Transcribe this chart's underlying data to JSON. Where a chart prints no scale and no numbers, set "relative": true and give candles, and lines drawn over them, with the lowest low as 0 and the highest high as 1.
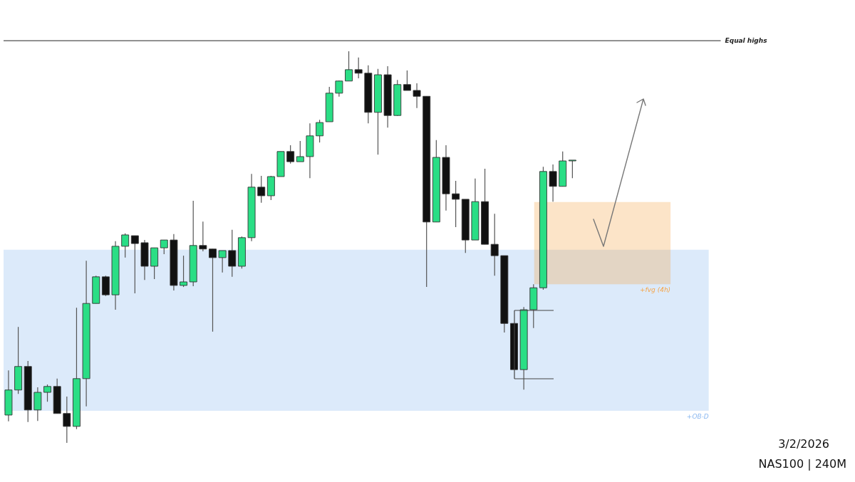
{
  "chart_data": {
    "type": "candlestick",
    "relative": true,
    "categories": [
      null,
      null,
      null,
      null,
      null,
      null,
      null,
      null,
      null,
      null,
      null,
      null,
      null,
      null,
      null,
      null,
      null,
      null,
      null,
      null,
      null,
      null,
      null,
      null,
      null,
      null,
      null,
      null,
      null,
      null,
      null,
      null,
      null,
      null,
      null,
      null,
      null,
      null,
      null,
      null,
      null,
      null,
      null,
      null,
      null,
      null,
      null,
      null,
      null,
      null,
      null,
      null,
      null,
      null,
      null,
      null,
      null,
      null,
      null
    ],
    "ohlc": [
      [
        0.071,
        0.185,
        0.055,
        0.135
      ],
      [
        0.135,
        0.296,
        0.125,
        0.195
      ],
      [
        0.195,
        0.209,
        0.053,
        0.084
      ],
      [
        0.084,
        0.142,
        0.056,
        0.129
      ],
      [
        0.129,
        0.149,
        0.105,
        0.144
      ],
      [
        0.144,
        0.164,
        0.075,
        0.075
      ],
      [
        0.075,
        0.118,
        0,
        0.042
      ],
      [
        0.042,
        0.345,
        0.035,
        0.164
      ],
      [
        0.164,
        0.465,
        0.093,
        0.356
      ],
      [
        0.356,
        0.427,
        0.356,
        0.424
      ],
      [
        0.424,
        0.427,
        0.375,
        0.378
      ],
      [
        0.378,
        0.515,
        0.34,
        0.502
      ],
      [
        0.502,
        0.535,
        0.473,
        0.531
      ],
      [
        0.529,
        0.529,
        0.382,
        0.509
      ],
      [
        0.511,
        0.518,
        0.416,
        0.451
      ],
      [
        0.451,
        0.498,
        0.418,
        0.498
      ],
      [
        0.498,
        0.518,
        0.482,
        0.518
      ],
      [
        0.518,
        0.533,
        0.389,
        0.402
      ],
      [
        0.402,
        0.478,
        0.398,
        0.411
      ],
      [
        0.411,
        0.618,
        0.4,
        0.504
      ],
      [
        0.504,
        0.565,
        0.489,
        0.495
      ],
      [
        0.495,
        0.495,
        0.284,
        0.473
      ],
      [
        0.473,
        0.491,
        0.435,
        0.491
      ],
      [
        0.491,
        0.544,
        0.424,
        0.451
      ],
      [
        0.451,
        0.527,
        0.445,
        0.524
      ],
      [
        0.524,
        0.687,
        0.515,
        0.653
      ],
      [
        0.653,
        0.682,
        0.613,
        0.631
      ],
      [
        0.631,
        0.682,
        0.62,
        0.68
      ],
      [
        0.68,
        0.744,
        0.68,
        0.744
      ],
      [
        0.744,
        0.76,
        0.713,
        0.718
      ],
      [
        0.718,
        0.771,
        0.718,
        0.731
      ],
      [
        0.731,
        0.816,
        0.676,
        0.784
      ],
      [
        0.784,
        0.825,
        0.767,
        0.818
      ],
      [
        0.82,
        0.909,
        0.82,
        0.893
      ],
      [
        0.893,
        0.925,
        0.884,
        0.924
      ],
      [
        0.924,
        1,
        0.924,
        0.953
      ],
      [
        0.953,
        0.984,
        0.931,
        0.944
      ],
      [
        0.944,
        0.964,
        0.816,
        0.844
      ],
      [
        0.844,
        0.955,
        0.736,
        0.94
      ],
      [
        0.94,
        0.962,
        0.805,
        0.836
      ],
      [
        0.836,
        0.927,
        0.835,
        0.915
      ],
      [
        0.915,
        0.951,
        0.9,
        0.9
      ],
      [
        0.9,
        0.918,
        0.855,
        0.885
      ],
      [
        0.885,
        0.885,
        0.398,
        0.564
      ],
      [
        0.564,
        0.773,
        0.564,
        0.729
      ],
      [
        0.729,
        0.76,
        0.593,
        0.636
      ],
      [
        0.636,
        0.669,
        0.551,
        0.622
      ],
      [
        0.622,
        0.622,
        0.485,
        0.518
      ],
      [
        0.518,
        0.675,
        0.518,
        0.616
      ],
      [
        0.616,
        0.7,
        0.507,
        0.507
      ],
      [
        0.507,
        0.585,
        0.427,
        0.478
      ],
      [
        0.478,
        0.478,
        0.282,
        0.305
      ],
      [
        0.305,
        0.305,
        0.187,
        0.187
      ],
      [
        0.187,
        0.347,
        0.136,
        0.34
      ],
      [
        0.34,
        0.405,
        0.293,
        0.396
      ],
      [
        0.396,
        0.705,
        0.391,
        0.693
      ],
      [
        0.693,
        0.711,
        0.616,
        0.655
      ],
      [
        0.655,
        0.744,
        0.655,
        0.72
      ],
      [
        0.72,
        0.722,
        0.676,
        0.722
      ]
    ],
    "colors": [
      "#2ade85",
      "#2ade85",
      "#111111",
      "#2ade85",
      "#2ade85",
      "#111111",
      "#111111",
      "#2ade85",
      "#2ade85",
      "#2ade85",
      "#111111",
      "#2ade85",
      "#2ade85",
      "#111111",
      "#111111",
      "#2ade85",
      "#2ade85",
      "#111111",
      "#2ade85",
      "#2ade85",
      "#111111",
      "#111111",
      "#2ade85",
      "#111111",
      "#2ade85",
      "#2ade85",
      "#111111",
      "#2ade85",
      "#2ade85",
      "#111111",
      "#2ade85",
      "#2ade85",
      "#2ade85",
      "#2ade85",
      "#2ade85",
      "#2ade85",
      "#111111",
      "#111111",
      "#2ade85",
      "#111111",
      "#2ade85",
      "#111111",
      "#111111",
      "#111111",
      "#2ade85",
      "#111111",
      "#111111",
      "#111111",
      "#2ade85",
      "#111111",
      "#111111",
      "#111111",
      "#111111",
      "#2ade85",
      "#2ade85",
      "#2ade85",
      "#111111",
      "#2ade85",
      "#2ade85"
    ],
    "ref_lines": [
      {
        "axis": "y",
        "value": 1.027,
        "label": "Equal highs",
        "color": "#222222"
      }
    ],
    "bands": [
      {
        "axis": "y",
        "from": 0.082,
        "to": 0.493,
        "label": "+OB-D",
        "color": "#8bb8f0"
      },
      {
        "axis": "y",
        "from": 0.405,
        "to": 0.615,
        "label": "+fvg (4h)",
        "color": "#f5a54a"
      }
    ],
    "annotations": [
      "3/2/2026",
      "NAS100 | 240M"
    ]
  }
}
